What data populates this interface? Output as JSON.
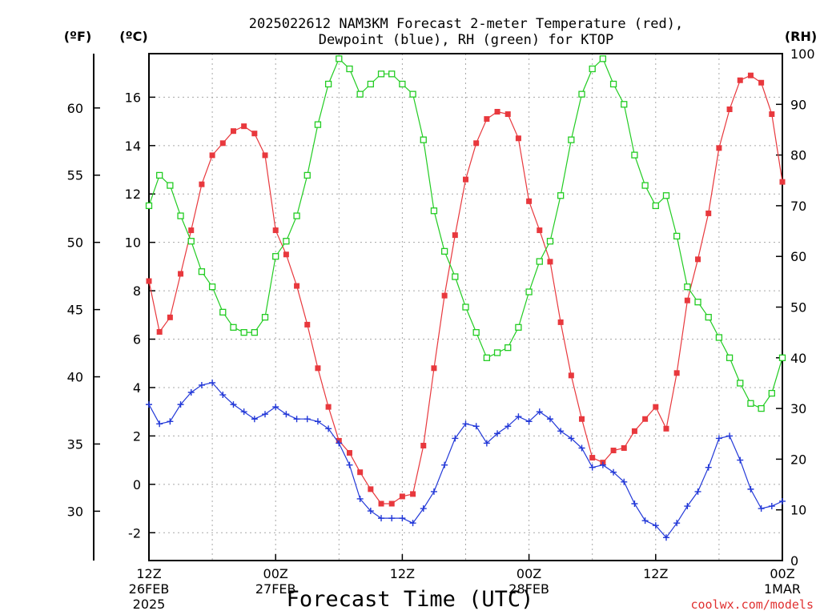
{
  "chart_data": {
    "type": "line",
    "title_line1": "2025022612 NAM3KM Forecast 2-meter Temperature (red),",
    "title_line2": "Dewpoint (blue), RH (green) for KTOP",
    "xlabel": "Forecast Time (UTC)",
    "credit": "coolwx.com/models",
    "units": {
      "fahrenheit": "(ºF)",
      "celsius": "(ºC)",
      "rh": "(RH)"
    },
    "x_ticks": [
      {
        "hour": 0,
        "line1": "12Z",
        "line2": "26FEB",
        "line3": "2025"
      },
      {
        "hour": 12,
        "line1": "00Z",
        "line2": "27FEB",
        "line3": ""
      },
      {
        "hour": 24,
        "line1": "12Z",
        "line2": "",
        "line3": ""
      },
      {
        "hour": 36,
        "line1": "00Z",
        "line2": "28FEB",
        "line3": ""
      },
      {
        "hour": 48,
        "line1": "12Z",
        "line2": "",
        "line3": ""
      },
      {
        "hour": 60,
        "line1": "00Z",
        "line2": "1MAR",
        "line3": ""
      }
    ],
    "xlim": [
      0,
      60
    ],
    "celsius_ticks": [
      "-2",
      "0",
      "2",
      "4",
      "6",
      "8",
      "10",
      "12",
      "14",
      "16"
    ],
    "celsius_lim": [
      -3.15,
      17.8
    ],
    "fahrenheit_ticks": [
      "30",
      "35",
      "40",
      "45",
      "50",
      "55",
      "60"
    ],
    "rh_ticks": [
      "0",
      "10",
      "20",
      "30",
      "40",
      "50",
      "60",
      "70",
      "80",
      "90",
      "100"
    ],
    "rh_lim": [
      0,
      100
    ],
    "grid": true,
    "series": [
      {
        "key": "temperature",
        "units": "C",
        "color": "#e8383d",
        "marker": "filled-square",
        "values": [
          8.4,
          6.3,
          6.9,
          8.7,
          10.5,
          12.4,
          13.6,
          14.1,
          14.6,
          14.8,
          14.5,
          13.6,
          10.5,
          9.5,
          8.2,
          6.6,
          4.8,
          3.2,
          1.8,
          1.3,
          0.5,
          -0.2,
          -0.8,
          -0.8,
          -0.5,
          -0.4,
          1.6,
          4.8,
          7.8,
          10.3,
          12.6,
          14.1,
          15.1,
          15.4,
          15.3,
          14.3,
          11.7,
          10.5,
          9.2,
          6.7,
          4.5,
          2.7,
          1.1,
          0.9,
          1.4,
          1.5,
          2.2,
          2.7,
          3.2,
          2.3,
          4.6,
          7.6,
          9.3,
          11.2,
          13.9,
          15.5,
          16.7,
          16.9,
          16.6,
          15.3,
          12.5
        ]
      },
      {
        "key": "dewpoint",
        "units": "C",
        "color": "#2238d8",
        "marker": "plus",
        "values": [
          3.3,
          2.5,
          2.6,
          3.3,
          3.8,
          4.1,
          4.2,
          3.7,
          3.3,
          3.0,
          2.7,
          2.9,
          3.2,
          2.9,
          2.7,
          2.7,
          2.6,
          2.3,
          1.7,
          0.8,
          -0.6,
          -1.1,
          -1.4,
          -1.4,
          -1.4,
          -1.6,
          -1.0,
          -0.3,
          0.8,
          1.9,
          2.5,
          2.4,
          1.7,
          2.1,
          2.4,
          2.8,
          2.6,
          3.0,
          2.7,
          2.2,
          1.9,
          1.5,
          0.7,
          0.8,
          0.5,
          0.1,
          -0.8,
          -1.5,
          -1.7,
          -2.2,
          -1.6,
          -0.9,
          -0.3,
          0.7,
          1.9,
          2.0,
          1.0,
          -0.2,
          -1.0,
          -0.9,
          -0.7
        ]
      },
      {
        "key": "rh",
        "units": "%",
        "color": "#22cc22",
        "marker": "open-square",
        "values": [
          70,
          76,
          74,
          68,
          63,
          57,
          54,
          49,
          46,
          45,
          45,
          48,
          60,
          63,
          68,
          76,
          86,
          94,
          99,
          97,
          92,
          94,
          96,
          96,
          94,
          92,
          83,
          69,
          61,
          56,
          50,
          45,
          40,
          41,
          42,
          46,
          53,
          59,
          63,
          72,
          83,
          92,
          97,
          99,
          94,
          90,
          80,
          74,
          70,
          72,
          64,
          54,
          51,
          48,
          44,
          40,
          35,
          31,
          30,
          33,
          40
        ]
      }
    ]
  }
}
